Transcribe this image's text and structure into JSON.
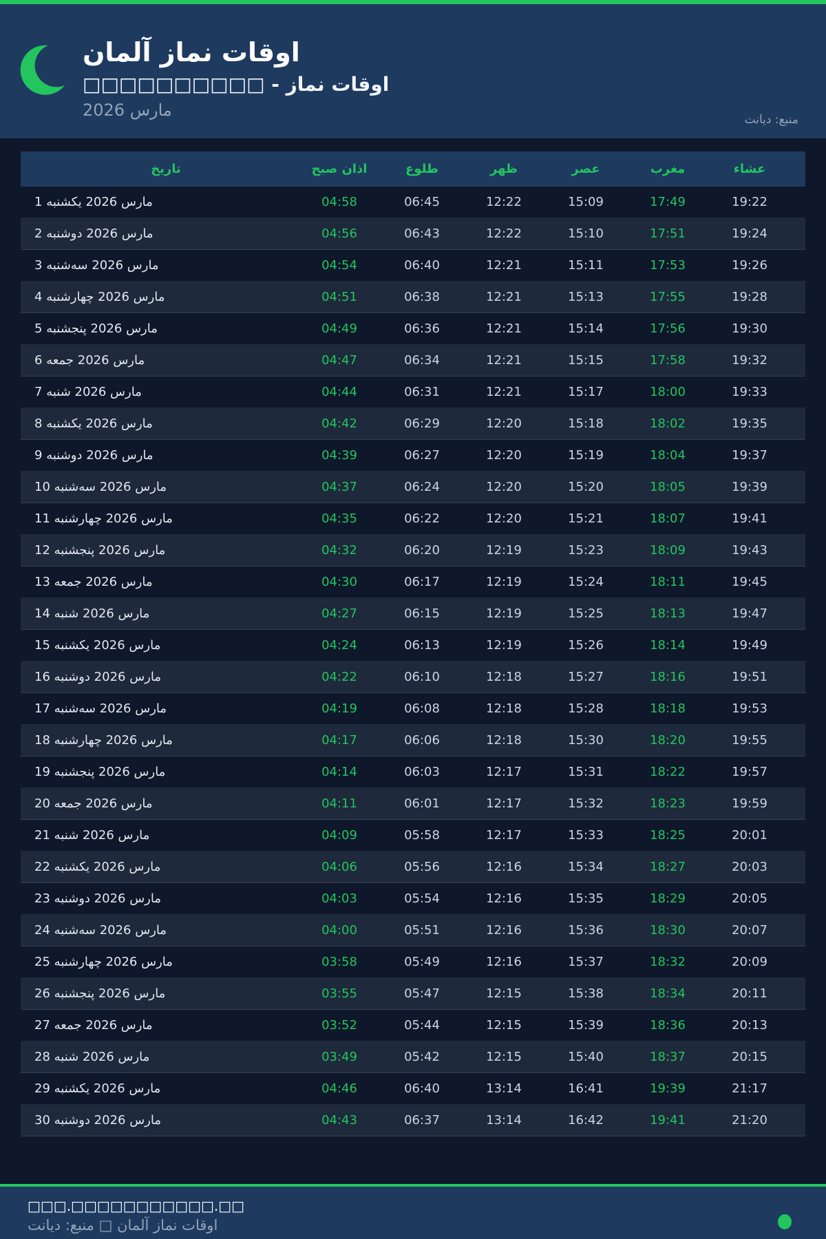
{
  "header": {
    "title": "اوقات نماز آلمان",
    "subtitle": "□□□□□□□□□□ - اوقات نماز",
    "month": "مارس 2026",
    "source": "منبع: دیانت",
    "icon": "crescent-moon-icon"
  },
  "colors": {
    "accent": "#22c55e",
    "header_bg": "#1e3a5f",
    "page_bg": "#0f172a",
    "alt_row": "#1e293b"
  },
  "table": {
    "columns": [
      "تاریخ",
      "اذان صبح",
      "طلوع",
      "ظهر",
      "عصر",
      "مغرب",
      "عشاء"
    ],
    "rows": [
      [
        "1 مارس 2026 یکشنبه",
        "04:58",
        "06:45",
        "12:22",
        "15:09",
        "17:49",
        "19:22"
      ],
      [
        "2 مارس 2026 دوشنبه",
        "04:56",
        "06:43",
        "12:22",
        "15:10",
        "17:51",
        "19:24"
      ],
      [
        "3 مارس 2026 سه‌شنبه",
        "04:54",
        "06:40",
        "12:21",
        "15:11",
        "17:53",
        "19:26"
      ],
      [
        "4 مارس 2026 چهارشنبه",
        "04:51",
        "06:38",
        "12:21",
        "15:13",
        "17:55",
        "19:28"
      ],
      [
        "5 مارس 2026 پنجشنبه",
        "04:49",
        "06:36",
        "12:21",
        "15:14",
        "17:56",
        "19:30"
      ],
      [
        "6 مارس 2026 جمعه",
        "04:47",
        "06:34",
        "12:21",
        "15:15",
        "17:58",
        "19:32"
      ],
      [
        "7 مارس 2026 شنبه",
        "04:44",
        "06:31",
        "12:21",
        "15:17",
        "18:00",
        "19:33"
      ],
      [
        "8 مارس 2026 یکشنبه",
        "04:42",
        "06:29",
        "12:20",
        "15:18",
        "18:02",
        "19:35"
      ],
      [
        "9 مارس 2026 دوشنبه",
        "04:39",
        "06:27",
        "12:20",
        "15:19",
        "18:04",
        "19:37"
      ],
      [
        "10 مارس 2026 سه‌شنبه",
        "04:37",
        "06:24",
        "12:20",
        "15:20",
        "18:05",
        "19:39"
      ],
      [
        "11 مارس 2026 چهارشنبه",
        "04:35",
        "06:22",
        "12:20",
        "15:21",
        "18:07",
        "19:41"
      ],
      [
        "12 مارس 2026 پنجشنبه",
        "04:32",
        "06:20",
        "12:19",
        "15:23",
        "18:09",
        "19:43"
      ],
      [
        "13 مارس 2026 جمعه",
        "04:30",
        "06:17",
        "12:19",
        "15:24",
        "18:11",
        "19:45"
      ],
      [
        "14 مارس 2026 شنبه",
        "04:27",
        "06:15",
        "12:19",
        "15:25",
        "18:13",
        "19:47"
      ],
      [
        "15 مارس 2026 یکشنبه",
        "04:24",
        "06:13",
        "12:19",
        "15:26",
        "18:14",
        "19:49"
      ],
      [
        "16 مارس 2026 دوشنبه",
        "04:22",
        "06:10",
        "12:18",
        "15:27",
        "18:16",
        "19:51"
      ],
      [
        "17 مارس 2026 سه‌شنبه",
        "04:19",
        "06:08",
        "12:18",
        "15:28",
        "18:18",
        "19:53"
      ],
      [
        "18 مارس 2026 چهارشنبه",
        "04:17",
        "06:06",
        "12:18",
        "15:30",
        "18:20",
        "19:55"
      ],
      [
        "19 مارس 2026 پنجشنبه",
        "04:14",
        "06:03",
        "12:17",
        "15:31",
        "18:22",
        "19:57"
      ],
      [
        "20 مارس 2026 جمعه",
        "04:11",
        "06:01",
        "12:17",
        "15:32",
        "18:23",
        "19:59"
      ],
      [
        "21 مارس 2026 شنبه",
        "04:09",
        "05:58",
        "12:17",
        "15:33",
        "18:25",
        "20:01"
      ],
      [
        "22 مارس 2026 یکشنبه",
        "04:06",
        "05:56",
        "12:16",
        "15:34",
        "18:27",
        "20:03"
      ],
      [
        "23 مارس 2026 دوشنبه",
        "04:03",
        "05:54",
        "12:16",
        "15:35",
        "18:29",
        "20:05"
      ],
      [
        "24 مارس 2026 سه‌شنبه",
        "04:00",
        "05:51",
        "12:16",
        "15:36",
        "18:30",
        "20:07"
      ],
      [
        "25 مارس 2026 چهارشنبه",
        "03:58",
        "05:49",
        "12:16",
        "15:37",
        "18:32",
        "20:09"
      ],
      [
        "26 مارس 2026 پنجشنبه",
        "03:55",
        "05:47",
        "12:15",
        "15:38",
        "18:34",
        "20:11"
      ],
      [
        "27 مارس 2026 جمعه",
        "03:52",
        "05:44",
        "12:15",
        "15:39",
        "18:36",
        "20:13"
      ],
      [
        "28 مارس 2026 شنبه",
        "03:49",
        "05:42",
        "12:15",
        "15:40",
        "18:37",
        "20:15"
      ],
      [
        "29 مارس 2026 یکشنبه",
        "04:46",
        "06:40",
        "13:14",
        "16:41",
        "19:39",
        "21:17"
      ],
      [
        "30 مارس 2026 دوشنبه",
        "04:43",
        "06:37",
        "13:14",
        "16:42",
        "19:41",
        "21:20"
      ]
    ]
  },
  "footer": {
    "site": "□□□.□□□□□□□□□□□.□□",
    "note": "اوقات نماز آلمان □ منبع: دیانت"
  }
}
